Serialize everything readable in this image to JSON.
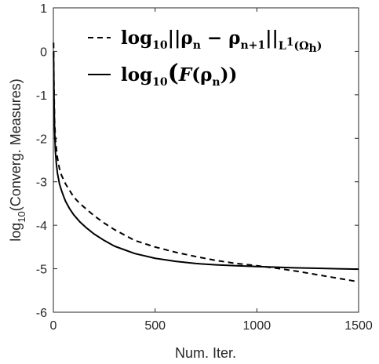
{
  "chart_data": {
    "type": "line",
    "title": "",
    "xlabel": "Num. Iter.",
    "ylabel_main": "log",
    "ylabel_sub": "10",
    "ylabel_rest": "(Converg. Measures)",
    "xlim": [
      0,
      1500
    ],
    "ylim": [
      -6,
      1
    ],
    "xticks": [
      "0",
      "500",
      "1000",
      "1500"
    ],
    "yticks": [
      "-6",
      "-5",
      "-4",
      "-3",
      "-2",
      "-1",
      "0",
      "1"
    ],
    "grid": false,
    "legend_position": "top-right",
    "series": [
      {
        "name_parts": [
          "log",
          "10",
          "||ρ",
          "n",
          " − ρ",
          "n+1",
          "||",
          "L",
          "1",
          "(Ω",
          "h",
          ")"
        ],
        "style": "dashed",
        "color": "#000000",
        "x": [
          1,
          3,
          6,
          10,
          15,
          20,
          30,
          40,
          50,
          60,
          80,
          100,
          130,
          160,
          200,
          250,
          300,
          400,
          500,
          600,
          700,
          800,
          900,
          1000,
          1100,
          1200,
          1300,
          1400,
          1500
        ],
        "y": [
          0.2,
          -0.8,
          -1.6,
          -2.0,
          -2.25,
          -2.45,
          -2.7,
          -2.85,
          -2.95,
          -3.05,
          -3.2,
          -3.35,
          -3.5,
          -3.62,
          -3.78,
          -3.95,
          -4.1,
          -4.35,
          -4.5,
          -4.62,
          -4.72,
          -4.81,
          -4.88,
          -4.93,
          -4.99,
          -5.06,
          -5.14,
          -5.22,
          -5.3
        ]
      },
      {
        "name_parts": [
          "log",
          "10",
          "(",
          "F",
          "(ρ",
          "n",
          "))"
        ],
        "style": "solid",
        "color": "#000000",
        "x": [
          1,
          3,
          6,
          10,
          15,
          20,
          30,
          40,
          50,
          60,
          80,
          100,
          130,
          160,
          200,
          250,
          300,
          400,
          500,
          600,
          700,
          800,
          900,
          1000,
          1100,
          1200,
          1300,
          1400,
          1500
        ],
        "y": [
          0.0,
          -1.0,
          -1.8,
          -2.3,
          -2.6,
          -2.8,
          -3.05,
          -3.2,
          -3.33,
          -3.45,
          -3.62,
          -3.76,
          -3.92,
          -4.05,
          -4.2,
          -4.35,
          -4.48,
          -4.65,
          -4.76,
          -4.83,
          -4.88,
          -4.91,
          -4.93,
          -4.95,
          -4.965,
          -4.98,
          -4.99,
          -5.0,
          -5.01
        ]
      }
    ]
  }
}
